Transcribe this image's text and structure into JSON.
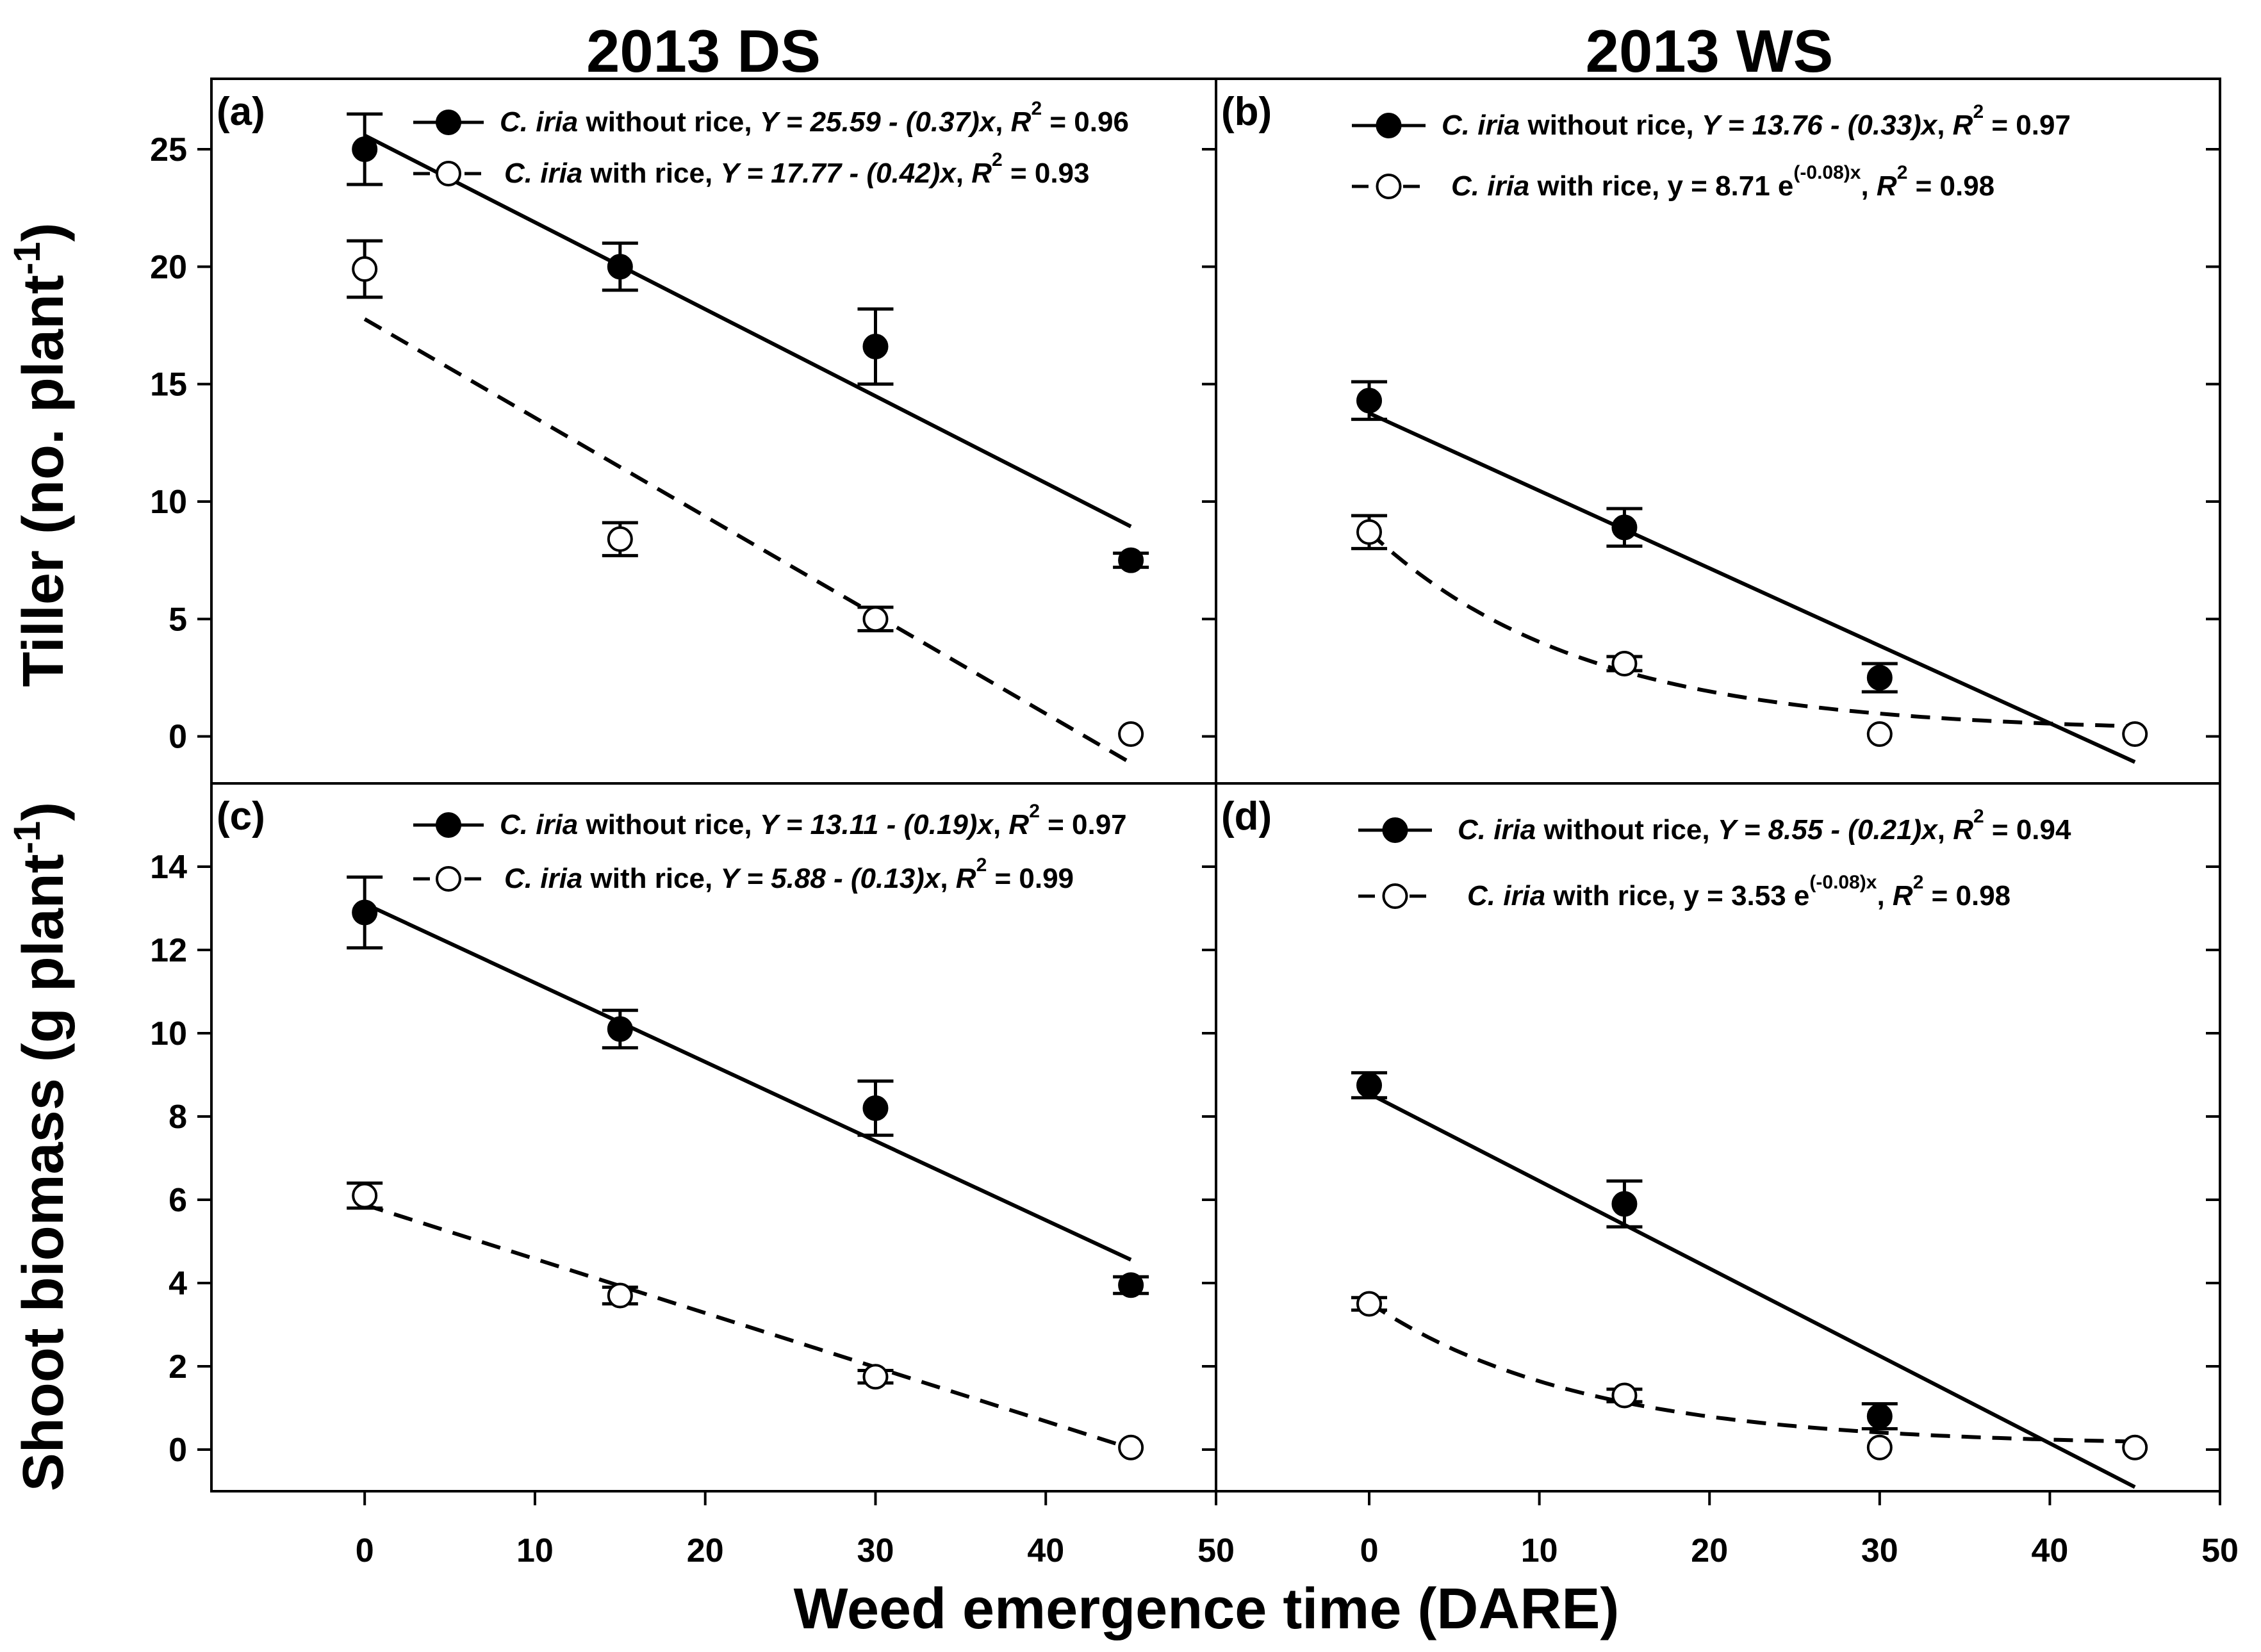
{
  "figure": {
    "col_titles": [
      "2013 DS",
      "2013 WS"
    ],
    "xlabel": "Weed emergence time (DARE)",
    "ylabels": {
      "top": {
        "main": "Tiller (no. plant",
        "sup": "-1",
        "close": ")"
      },
      "bottom": {
        "main": "Shoot biomass (g plant",
        "sup": "-1",
        "close": ")"
      }
    }
  },
  "chart_data": [
    {
      "type": "scatter",
      "panel": "(a)",
      "column": "2013 DS",
      "xlim": [
        -9,
        50
      ],
      "xticks": [
        0,
        10,
        20,
        30,
        40,
        50
      ],
      "ylim": [
        -2,
        28
      ],
      "yticks": [
        0,
        5,
        10,
        15,
        20,
        25
      ],
      "ylabel": "Tiller (no. plant-1)",
      "series": [
        {
          "name": "C. iria without rice",
          "marker": "filled",
          "line": "solid",
          "x": [
            0,
            15,
            30,
            45
          ],
          "y": [
            25,
            20,
            16.6,
            7.5
          ],
          "err": [
            1.5,
            1.0,
            1.6,
            0.3
          ],
          "fit": {
            "kind": "linear",
            "a": 25.59,
            "b": -0.37,
            "x0": 0,
            "x1": 45
          },
          "legend": {
            "species": "C. iria",
            "desc": " without rice,",
            "eq1": "Y = 25.59 - (0.37)",
            "eqx": "x",
            "eq2": ", ",
            "r": "R",
            "r2sup": "2",
            "r2val": " = 0.96"
          }
        },
        {
          "name": "C. iria with rice",
          "marker": "open",
          "line": "dashed",
          "x": [
            0,
            15,
            30,
            45
          ],
          "y": [
            19.9,
            8.4,
            5.0,
            0.1
          ],
          "err": [
            1.2,
            0.7,
            0.5,
            0.0
          ],
          "fit": {
            "kind": "linear",
            "a": 17.77,
            "b": -0.42,
            "x0": 0,
            "x1": 45
          },
          "legend": {
            "species": "C. iria",
            "desc": " with rice, ",
            "eq1": "Y = 17.77 - (0.42)",
            "eqx": "x",
            "eq2": ", ",
            "r": "R",
            "r2sup": "2",
            "r2val": " = 0.93"
          }
        }
      ]
    },
    {
      "type": "scatter",
      "panel": "(b)",
      "column": "2013 WS",
      "xlim": [
        -9,
        50
      ],
      "xticks": [
        0,
        10,
        20,
        30,
        40,
        50
      ],
      "ylim": [
        -2,
        28
      ],
      "yticks": [
        0,
        5,
        10,
        15,
        20,
        25
      ],
      "series": [
        {
          "name": "C. iria without rice",
          "marker": "filled",
          "line": "solid",
          "x": [
            0,
            15,
            30
          ],
          "y": [
            14.3,
            8.9,
            2.5
          ],
          "err": [
            0.8,
            0.8,
            0.6
          ],
          "fit": {
            "kind": "linear",
            "a": 13.76,
            "b": -0.33,
            "x0": 0,
            "x1": 45
          },
          "legend": {
            "species": "C. iria",
            "desc": " without rice,",
            "eq1": "Y = 13.76 - (0.33)",
            "eqx": "x",
            "eq2": ", ",
            "r": "R",
            "r2sup": "2",
            "r2val": " = 0.97"
          }
        },
        {
          "name": "C. iria with rice",
          "marker": "open",
          "line": "dashed",
          "x": [
            0,
            15,
            30,
            45
          ],
          "y": [
            8.7,
            3.1,
            0.1,
            0.1
          ],
          "err": [
            0.7,
            0.3,
            0.0,
            0.0
          ],
          "fit": {
            "kind": "exp",
            "a": 8.71,
            "b": -0.08,
            "floor": 0.2,
            "x0": 0,
            "x1": 45
          },
          "legend": {
            "species": "C. iria",
            "desc": " with rice, ",
            "eq1": "y = 8.71 e",
            "expsup": "(-0.08)x",
            "eq2": ", ",
            "r": "R",
            "r2sup": "2",
            "r2val": " = 0.98"
          }
        }
      ]
    },
    {
      "type": "scatter",
      "panel": "(c)",
      "column": "2013 DS",
      "xlim": [
        -9,
        50
      ],
      "xticks": [
        0,
        10,
        20,
        30,
        40,
        50
      ],
      "ylim": [
        -1,
        16
      ],
      "yticks": [
        0,
        2,
        4,
        6,
        8,
        10,
        12,
        14
      ],
      "ylabel": "Shoot biomass (g plant-1)",
      "series": [
        {
          "name": "C. iria without rice",
          "marker": "filled",
          "line": "solid",
          "x": [
            0,
            15,
            30,
            45
          ],
          "y": [
            12.9,
            10.1,
            8.2,
            3.95
          ],
          "err": [
            0.85,
            0.45,
            0.65,
            0.2
          ],
          "fit": {
            "kind": "linear",
            "a": 13.11,
            "b": -0.19,
            "x0": 0,
            "x1": 45
          },
          "legend": {
            "species": "C. iria",
            "desc": " without rice,",
            "eq1": "Y = 13.11 - (0.19)",
            "eqx": "x",
            "eq2": ", ",
            "r": "R",
            "r2sup": "2",
            "r2val": " = 0.97"
          }
        },
        {
          "name": "C. iria with rice",
          "marker": "open",
          "line": "dashed",
          "x": [
            0,
            15,
            30,
            45
          ],
          "y": [
            6.1,
            3.7,
            1.75,
            0.05
          ],
          "err": [
            0.3,
            0.2,
            0.15,
            0.0
          ],
          "fit": {
            "kind": "linear",
            "a": 5.88,
            "b": -0.13,
            "x0": 0,
            "x1": 45
          },
          "legend": {
            "species": "C. iria",
            "desc": " with rice, ",
            "eq1": "Y = 5.88 - (0.13)",
            "eqx": "x",
            "eq2": ", ",
            "r": "R",
            "r2sup": "2",
            "r2val": " = 0.99"
          }
        }
      ]
    },
    {
      "type": "scatter",
      "panel": "(d)",
      "column": "2013 WS",
      "xlim": [
        -9,
        50
      ],
      "xticks": [
        0,
        10,
        20,
        30,
        40,
        50
      ],
      "ylim": [
        -1,
        16
      ],
      "yticks": [
        0,
        2,
        4,
        6,
        8,
        10,
        12,
        14
      ],
      "series": [
        {
          "name": "C. iria without rice",
          "marker": "filled",
          "line": "solid",
          "x": [
            0,
            15,
            30
          ],
          "y": [
            8.75,
            5.9,
            0.8
          ],
          "err": [
            0.3,
            0.55,
            0.3
          ],
          "fit": {
            "kind": "linear",
            "a": 8.55,
            "b": -0.21,
            "x0": 0,
            "x1": 45
          },
          "legend": {
            "species": "C. iria",
            "desc": " without rice,",
            "eq1": "Y = 8.55 - (0.21)",
            "eqx": "x",
            "eq2": ", ",
            "r": "R",
            "r2sup": "2",
            "r2val": " = 0.94"
          }
        },
        {
          "name": "C. iria with rice",
          "marker": "open",
          "line": "dashed",
          "x": [
            0,
            15,
            30,
            45
          ],
          "y": [
            3.5,
            1.3,
            0.05,
            0.05
          ],
          "err": [
            0.15,
            0.15,
            0.0,
            0.0
          ],
          "fit": {
            "kind": "exp",
            "a": 3.53,
            "b": -0.08,
            "floor": 0.1,
            "x0": 0,
            "x1": 45
          },
          "legend": {
            "species": "C. iria",
            "desc": " with rice, ",
            "eq1": "y = 3.53 e",
            "expsup": "(-0.08)x",
            "eq2": ", ",
            "r": "R",
            "r2sup": "2",
            "r2val": " = 0.98"
          }
        }
      ]
    }
  ]
}
